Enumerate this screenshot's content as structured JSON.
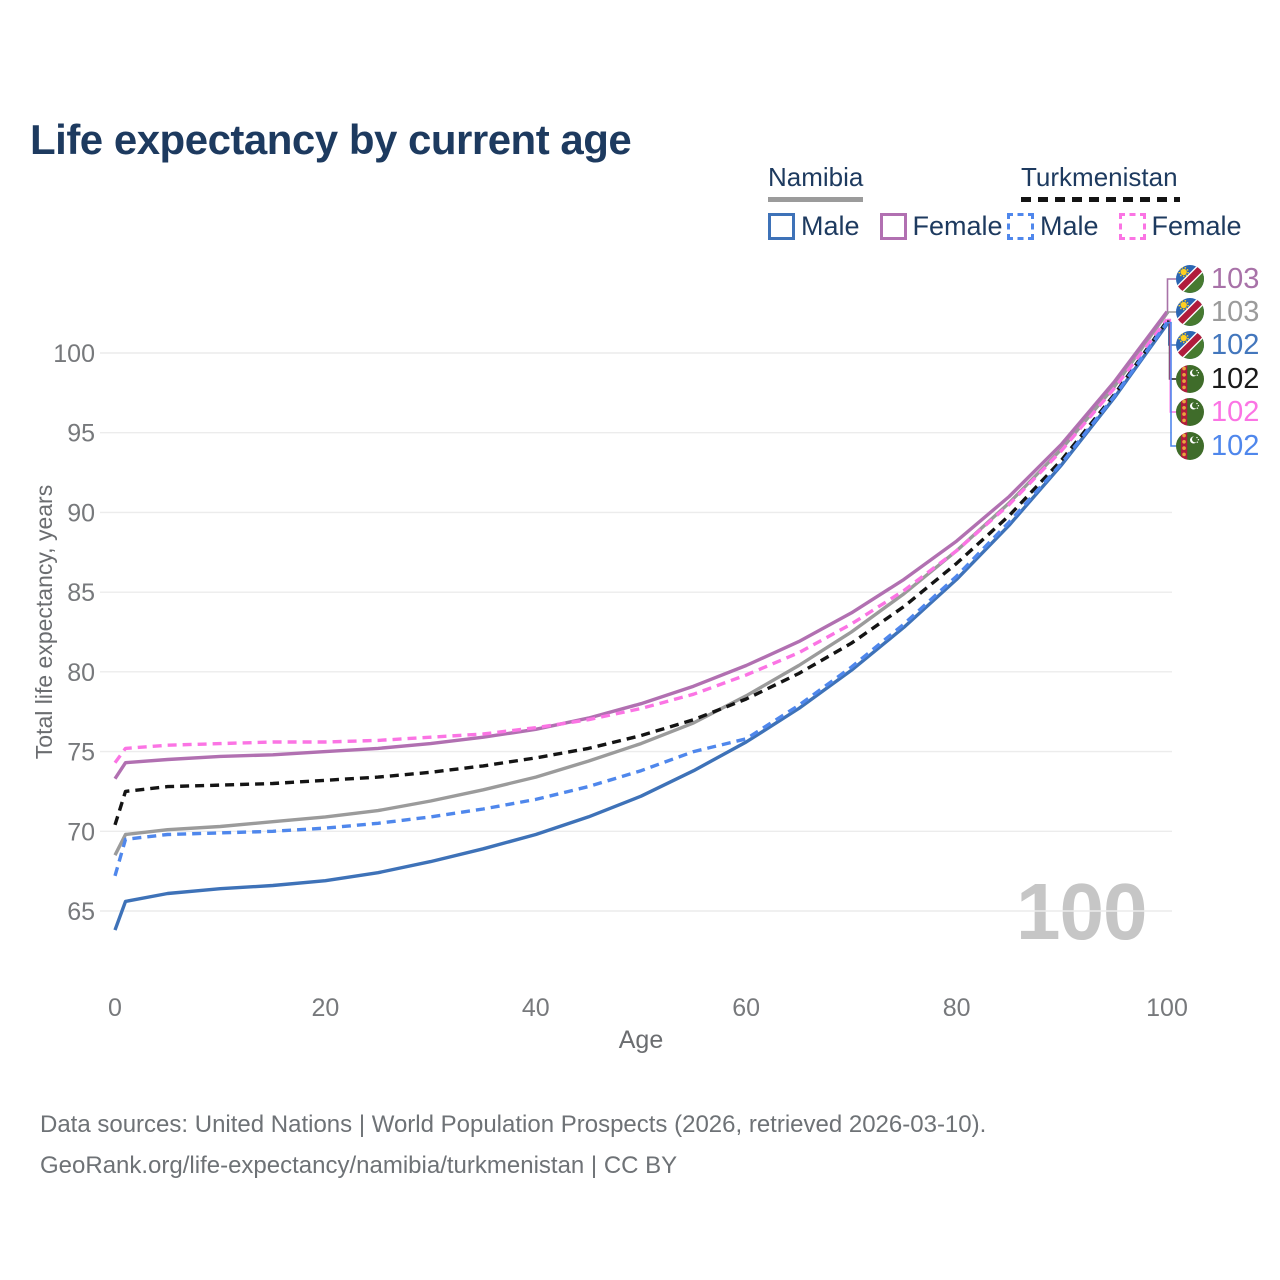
{
  "title": "Life expectancy by current age",
  "legend": {
    "groups": [
      {
        "name": "Namibia",
        "style": "solid",
        "underline_color": "#9b9b9b",
        "items": [
          {
            "label": "Male",
            "color": "#3e72b8",
            "dashed": false
          },
          {
            "label": "Female",
            "color": "#b170b1",
            "dashed": false
          }
        ]
      },
      {
        "name": "Turkmenistan",
        "style": "dashed",
        "underline_color": "#141414",
        "items": [
          {
            "label": "Male",
            "color": "#4f87ec",
            "dashed": true
          },
          {
            "label": "Female",
            "color": "#fb74e4",
            "dashed": true
          }
        ]
      }
    ]
  },
  "chart_data": {
    "type": "line",
    "title": "Life expectancy by current age",
    "xlabel": "Age",
    "ylabel": "Total life expectancy, years",
    "x_ticks": [
      0,
      20,
      40,
      60,
      80,
      100
    ],
    "y_ticks": [
      65,
      70,
      75,
      80,
      85,
      90,
      95,
      100
    ],
    "xlim": [
      0,
      100
    ],
    "ylim": [
      63,
      104
    ],
    "grid": true,
    "legend_position": "top-right",
    "watermark": "100",
    "ages": [
      0,
      1,
      5,
      10,
      15,
      20,
      25,
      30,
      35,
      40,
      45,
      50,
      55,
      60,
      65,
      70,
      75,
      80,
      85,
      90,
      95,
      100
    ],
    "series": [
      {
        "id": "na_total",
        "name": "Namibia Both sexes",
        "country": "Namibia",
        "sex": "Both",
        "color": "#9b9b9b",
        "dash": "solid",
        "values": [
          68.5,
          69.8,
          70.1,
          70.3,
          70.6,
          70.9,
          71.3,
          71.9,
          72.6,
          73.4,
          74.4,
          75.5,
          76.8,
          78.5,
          80.4,
          82.5,
          84.9,
          87.6,
          90.6,
          94.0,
          97.9,
          102.5
        ]
      },
      {
        "id": "na_female",
        "name": "Namibia Female",
        "country": "Namibia",
        "sex": "Female",
        "color": "#b170b1",
        "dash": "solid",
        "values": [
          73.3,
          74.3,
          74.5,
          74.7,
          74.8,
          75.0,
          75.2,
          75.5,
          75.9,
          76.4,
          77.1,
          78.0,
          79.1,
          80.4,
          81.9,
          83.7,
          85.8,
          88.2,
          91.0,
          94.3,
          98.2,
          102.6
        ]
      },
      {
        "id": "na_male",
        "name": "Namibia Male",
        "country": "Namibia",
        "sex": "Male",
        "color": "#3e72b8",
        "dash": "solid",
        "values": [
          63.8,
          65.6,
          66.1,
          66.4,
          66.6,
          66.9,
          67.4,
          68.1,
          68.9,
          69.8,
          70.9,
          72.2,
          73.8,
          75.6,
          77.7,
          80.1,
          82.8,
          85.8,
          89.2,
          93.0,
          97.2,
          101.8
        ]
      },
      {
        "id": "tm_total",
        "name": "Turkmenistan Both sexes",
        "country": "Turkmenistan",
        "sex": "Both",
        "color": "#141414",
        "dash": "dashed",
        "values": [
          70.4,
          72.5,
          72.8,
          72.9,
          73.0,
          73.2,
          73.4,
          73.7,
          74.1,
          74.6,
          75.2,
          76.0,
          77.0,
          78.3,
          79.9,
          81.8,
          84.1,
          86.8,
          89.8,
          93.3,
          97.4,
          102.0
        ]
      },
      {
        "id": "tm_female",
        "name": "Turkmenistan Female",
        "country": "Turkmenistan",
        "sex": "Female",
        "color": "#fb74e4",
        "dash": "dashed",
        "values": [
          74.3,
          75.2,
          75.4,
          75.5,
          75.6,
          75.6,
          75.7,
          75.9,
          76.1,
          76.5,
          77.0,
          77.7,
          78.6,
          79.8,
          81.2,
          83.0,
          85.1,
          87.6,
          90.5,
          93.9,
          97.8,
          102.1
        ]
      },
      {
        "id": "tm_male",
        "name": "Turkmenistan Male",
        "country": "Turkmenistan",
        "sex": "Male",
        "color": "#4f87ec",
        "dash": "dashed",
        "values": [
          67.2,
          69.5,
          69.8,
          69.9,
          70.0,
          70.2,
          70.5,
          70.9,
          71.4,
          72.0,
          72.8,
          73.8,
          75.0,
          75.8,
          77.9,
          80.3,
          83.0,
          86.0,
          89.4,
          93.1,
          97.3,
          101.9
        ]
      }
    ],
    "end_labels": [
      {
        "value": "103",
        "series": "na_female",
        "flag": "namibia",
        "color": "#a872a8"
      },
      {
        "value": "103",
        "series": "na_total",
        "flag": "namibia",
        "color": "#9b9b9b"
      },
      {
        "value": "102",
        "series": "na_male",
        "flag": "namibia",
        "color": "#4377bd"
      },
      {
        "value": "102",
        "series": "tm_total",
        "flag": "turkmenistan",
        "color": "#1a1a1a"
      },
      {
        "value": "102",
        "series": "tm_female",
        "flag": "turkmenistan",
        "color": "#fb74e4"
      },
      {
        "value": "102",
        "series": "tm_male",
        "flag": "turkmenistan",
        "color": "#4f87ec"
      }
    ]
  },
  "theme": {
    "title": "#1d3a5f",
    "tick": "#77797c",
    "axis_label": "#6b6d70",
    "grid": "#ececec",
    "watermark": "#c6c6c6",
    "footer": "#6e7276"
  },
  "footer": {
    "line1": "Data sources: United Nations | World Population Prospects (2026, retrieved 2026-03-10).",
    "line2": "GeoRank.org/life-expectancy/namibia/turkmenistan | CC BY"
  }
}
